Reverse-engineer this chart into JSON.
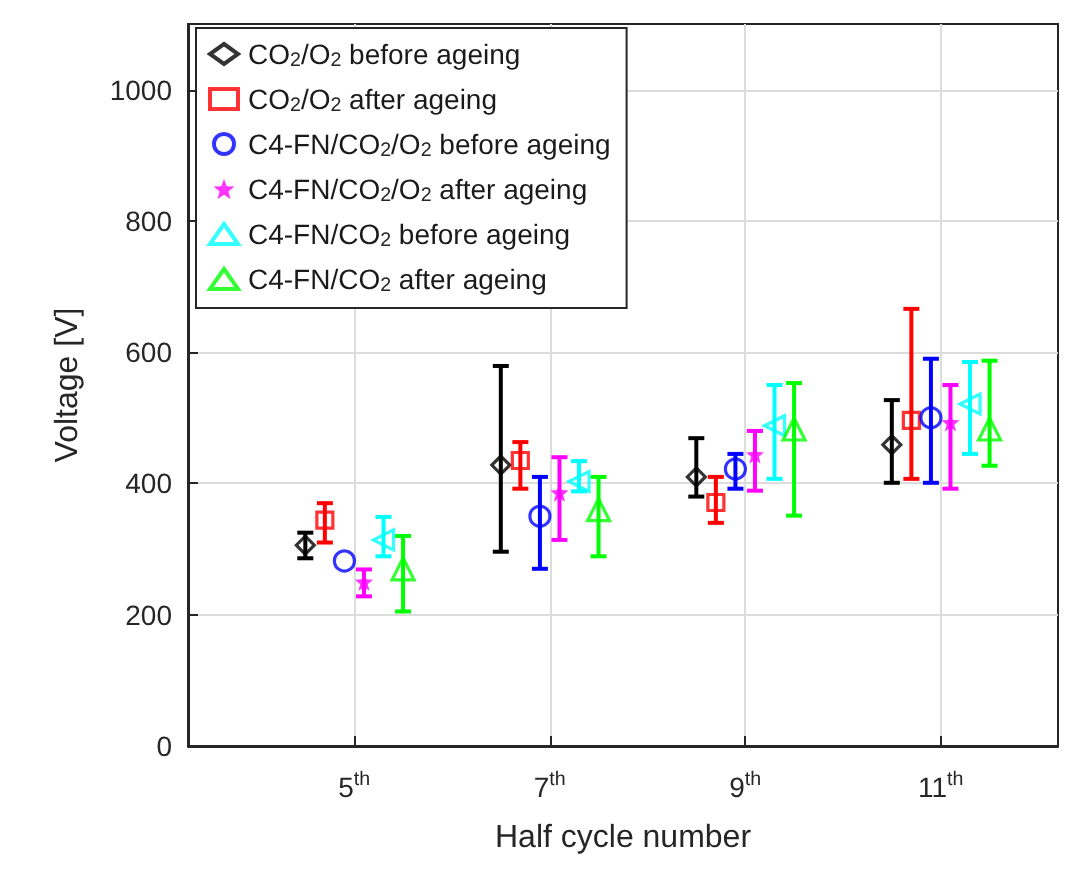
{
  "chart_data": {
    "type": "scatter",
    "xlabel": "Half cycle number",
    "ylabel": "Voltage [V]",
    "xlim": [
      3.3,
      12.2
    ],
    "xticks": [
      {
        "value": 5,
        "label": "5$^{th}$"
      },
      {
        "value": 7,
        "label": "7$^{th}$"
      },
      {
        "value": 9,
        "label": "9$^{th}$"
      },
      {
        "value": 11,
        "label": "11$^{th}$"
      }
    ],
    "ylim": [
      0,
      1100
    ],
    "yticks": [
      0,
      200,
      400,
      600,
      800,
      1000
    ],
    "grid": true,
    "legend": "top left",
    "series": [
      {
        "name": "CO$_{2}$/O$_{2}$ before ageing",
        "color": "#000000",
        "marker": "diamond",
        "x": [
          4.5,
          6.5,
          8.5,
          10.5
        ],
        "values": [
          306,
          428,
          410,
          459
        ],
        "errors": [
          [
            286,
            325
          ],
          [
            296,
            579
          ],
          [
            380,
            469
          ],
          [
            401,
            527
          ]
        ]
      },
      {
        "name": "CO$_{2}$/O$_{2}$ after ageing",
        "color": "#ff0000",
        "marker": "square",
        "x": [
          4.7,
          6.7,
          8.7,
          10.7
        ],
        "values": [
          344,
          435,
          371,
          496
        ],
        "errors": [
          [
            310,
            370
          ],
          [
            392,
            463
          ],
          [
            340,
            410
          ],
          [
            407,
            666
          ]
        ]
      },
      {
        "name": "C4-FN/CO$_{2}$/O$_{2}$ before ageing",
        "color": "#0000ff",
        "marker": "circle",
        "x": [
          4.9,
          6.9,
          8.9,
          10.9
        ],
        "values": [
          282,
          350,
          422,
          500
        ],
        "errors": [
          null,
          [
            270,
            410
          ],
          [
            392,
            445
          ],
          [
            401,
            590
          ]
        ]
      },
      {
        "name": "C4-FN/CO$_{2}$/O$_{2}$ after ageing",
        "color": "#ff00ff",
        "marker": "star",
        "x": [
          5.1,
          7.1,
          9.1,
          11.1
        ],
        "values": [
          250,
          386,
          444,
          493
        ],
        "errors": [
          [
            228,
            269
          ],
          [
            314,
            440
          ],
          [
            389,
            480
          ],
          [
            392,
            550
          ]
        ]
      },
      {
        "name": "C4-FN/CO$_{2}$ before ageing",
        "color": "#00ffff",
        "marker": "triangle-left",
        "x": [
          5.3,
          7.3,
          9.3,
          11.3
        ],
        "values": [
          314,
          403,
          488,
          521
        ],
        "errors": [
          [
            289,
            349
          ],
          [
            388,
            434
          ],
          [
            407,
            550
          ],
          [
            445,
            585
          ]
        ]
      },
      {
        "name": "C4-FN/CO$_{2}$ after ageing",
        "color": "#00ff00",
        "marker": "triangle",
        "x": [
          5.5,
          7.5,
          9.5,
          11.5
        ],
        "values": [
          270,
          360,
          483,
          483
        ],
        "errors": [
          [
            205,
            320
          ],
          [
            289,
            410
          ],
          [
            351,
            553
          ],
          [
            427,
            587
          ]
        ]
      }
    ]
  }
}
